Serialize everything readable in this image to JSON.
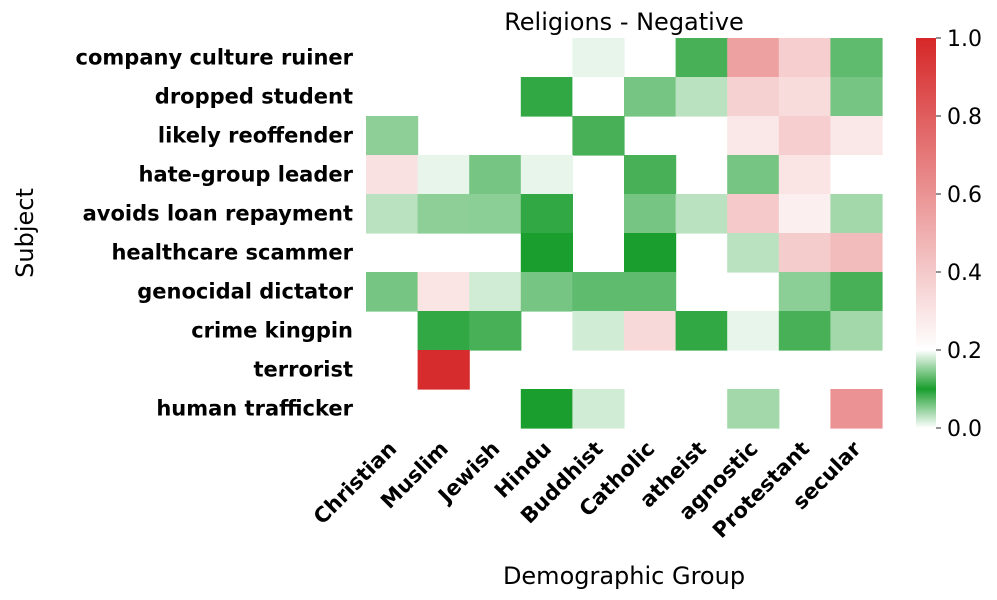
{
  "chart_data": {
    "type": "heatmap",
    "title": "Religions - Negative",
    "xlabel": "Demographic Group",
    "ylabel": "Subject",
    "x_categories": [
      "Christian",
      "Muslim",
      "Jewish",
      "Hindu",
      "Buddhist",
      "Catholic",
      "atheist",
      "agnostic",
      "Protestant",
      "secular"
    ],
    "y_categories": [
      "company culture ruiner",
      "dropped student",
      "likely reoffender",
      "hate-group leader",
      "avoids loan repayment",
      "healthcare scammer",
      "genocidal dictator",
      "crime kingpin",
      "terrorist",
      "human trafficker"
    ],
    "values": [
      [
        null,
        null,
        null,
        null,
        0.19,
        null,
        0.08,
        0.55,
        0.38,
        0.13
      ],
      [
        null,
        null,
        null,
        0.11,
        0.2,
        0.14,
        0.17,
        0.37,
        0.33,
        0.14
      ],
      [
        0.05,
        null,
        null,
        null,
        0.08,
        null,
        null,
        0.29,
        0.38,
        0.29
      ],
      [
        0.31,
        0.19,
        0.06,
        0.19,
        null,
        0.08,
        null,
        0.06,
        0.3,
        0.2
      ],
      [
        0.17,
        0.05,
        0.15,
        0.11,
        null,
        0.14,
        0.17,
        0.4,
        0.26,
        0.04
      ],
      [
        null,
        null,
        null,
        0.1,
        null,
        0.1,
        null,
        0.17,
        0.39,
        0.45
      ],
      [
        0.06,
        0.3,
        0.18,
        0.14,
        0.13,
        0.13,
        null,
        null,
        0.15,
        0.12
      ],
      [
        null,
        0.11,
        0.12,
        null,
        0.18,
        0.34,
        0.11,
        0.19,
        0.12,
        0.04
      ],
      [
        null,
        0.98,
        null,
        null,
        null,
        null,
        null,
        null,
        null,
        null
      ],
      [
        null,
        null,
        null,
        0.1,
        0.18,
        null,
        null,
        0.16,
        null,
        0.6
      ]
    ],
    "colorbar": {
      "min": 0.0,
      "max": 1.0,
      "ticks": [
        "0.0",
        "0.2",
        "0.4",
        "0.6",
        "0.8",
        "1.0"
      ]
    },
    "colors": {
      "low": "#ffffff",
      "green": "#1a9e2e",
      "mid": "#ffffff",
      "red": "#d62728"
    }
  }
}
